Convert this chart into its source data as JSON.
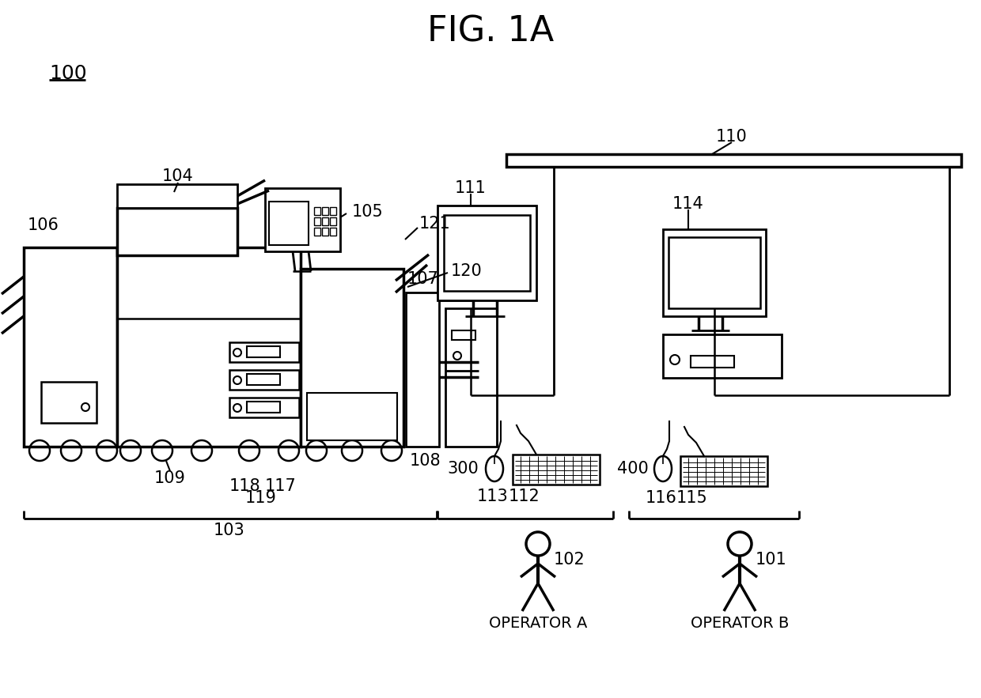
{
  "title": "FIG. 1A",
  "bg_color": "#ffffff",
  "line_color": "#000000",
  "label_100": "100",
  "label_101": "101",
  "label_102": "102",
  "label_103": "103",
  "label_104": "104",
  "label_105": "105",
  "label_106": "106",
  "label_107": "107",
  "label_108": "108",
  "label_109": "109",
  "label_110": "110",
  "label_111": "111",
  "label_112": "112",
  "label_113": "113",
  "label_114": "114",
  "label_115": "115",
  "label_116": "116",
  "label_117": "117",
  "label_118": "118",
  "label_119": "119",
  "label_120": "120",
  "label_121": "121",
  "label_300": "300",
  "label_400": "400",
  "operator_a": "OPERATOR A",
  "operator_b": "OPERATOR B"
}
